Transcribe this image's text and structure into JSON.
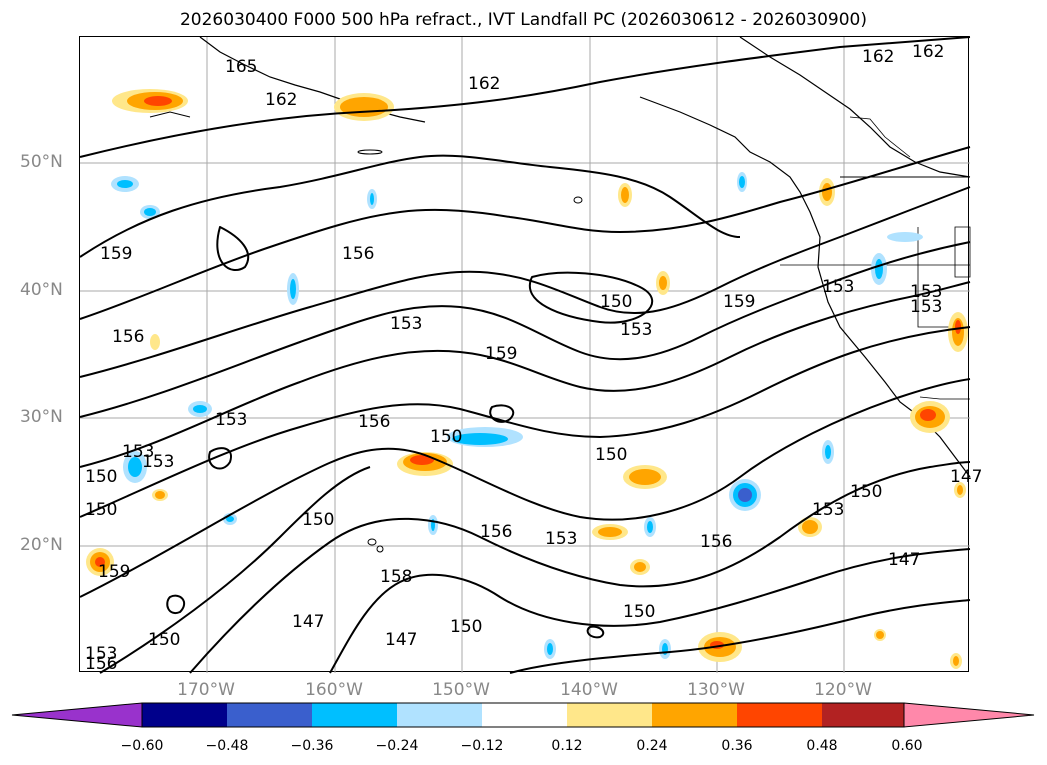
{
  "title": "2026030400 F000 500 hPa refract., IVT Landfall PC (2026030612 - 2026030900)",
  "lat_labels": [
    "50°N",
    "40°N",
    "30°N",
    "20°N"
  ],
  "lon_labels": [
    "170°W",
    "160°W",
    "150°W",
    "140°W",
    "130°W",
    "120°W"
  ],
  "contour_labels": [
    "165",
    "162",
    "162",
    "162",
    "162",
    "159",
    "156",
    "156",
    "153",
    "153",
    "153",
    "159",
    "153",
    "159",
    "156",
    "150",
    "150",
    "150",
    "153",
    "150",
    "153",
    "150",
    "156",
    "153",
    "156",
    "150",
    "153",
    "150",
    "147",
    "158",
    "147",
    "150",
    "150",
    "150",
    "153",
    "156",
    "159",
    "147",
    "153",
    "153",
    "147"
  ],
  "colorbar": {
    "ticks": [
      "−0.60",
      "−0.48",
      "−0.36",
      "−0.24",
      "−0.12",
      "0.12",
      "0.24",
      "0.36",
      "0.48",
      "0.60"
    ],
    "colors": [
      "#9932cc",
      "#00008b",
      "#3a5fcd",
      "#00bfff",
      "#b0e2ff",
      "#ffffff",
      "#ffe78a",
      "#ffa500",
      "#ff4500",
      "#b22222",
      "#ff88aa"
    ]
  },
  "colors": {
    "contour": "#000000",
    "grid": "#a9a9a9",
    "axis_label": "#888888"
  }
}
